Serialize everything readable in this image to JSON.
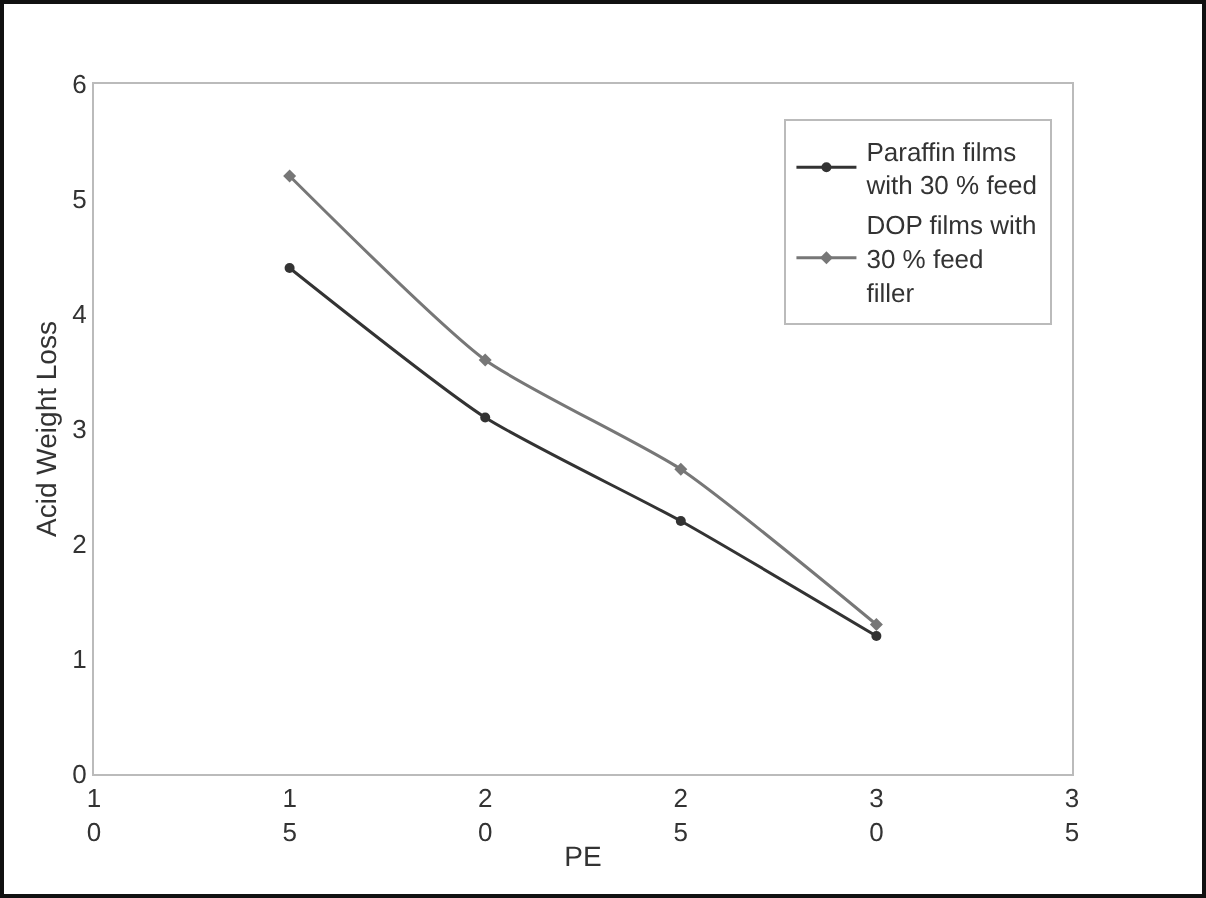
{
  "chart_data": {
    "type": "line",
    "xlabel": "PE",
    "ylabel": "Acid Weight Loss",
    "x": [
      15,
      20,
      25,
      30
    ],
    "series": [
      {
        "name": "Paraffin films with 30 % feed",
        "color": "#333333",
        "marker": "circle",
        "values": [
          4.4,
          3.1,
          2.2,
          1.2
        ]
      },
      {
        "name": "DOP films with 30 % feed filler",
        "color": "#777777",
        "marker": "diamond",
        "values": [
          5.2,
          3.6,
          2.65,
          1.3
        ]
      }
    ],
    "xlim": [
      10,
      35
    ],
    "xticks": [
      10,
      15,
      20,
      25,
      30,
      35
    ],
    "ylim": [
      0,
      6
    ],
    "yticks": [
      0,
      1,
      2,
      3,
      4,
      5,
      6
    ],
    "grid": false,
    "legend": "top right",
    "line_style": "solid"
  }
}
